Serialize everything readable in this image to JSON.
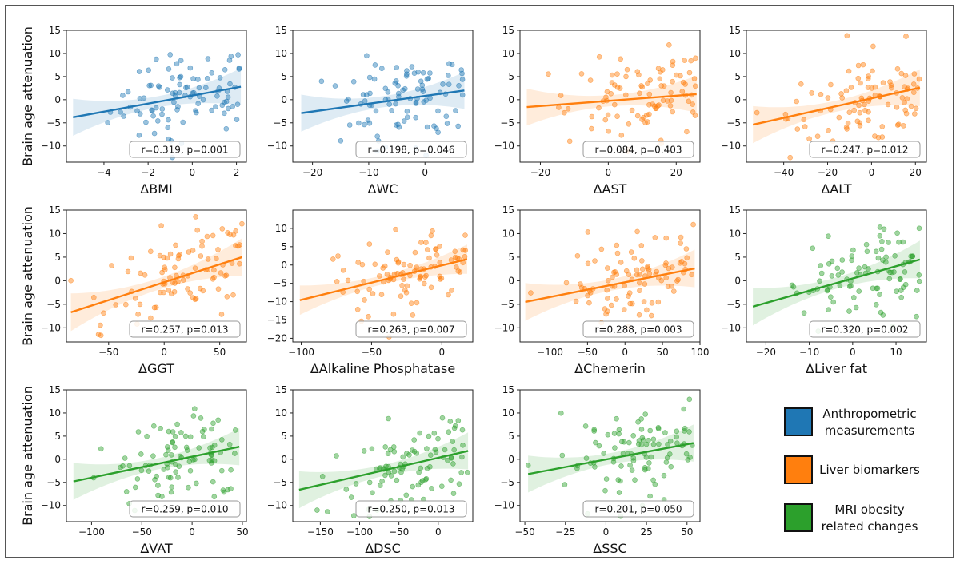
{
  "y_axis_title": "Brain age attenuation",
  "legend": [
    {
      "key": "anthro",
      "lines": [
        "Anthropometric",
        "measurements"
      ],
      "color": "#1f77b4"
    },
    {
      "key": "liver",
      "lines": [
        "Liver biomarkers"
      ],
      "color": "#ff7f0e"
    },
    {
      "key": "mri",
      "lines": [
        "MRI obesity",
        "related changes"
      ],
      "color": "#2ca02c"
    }
  ],
  "chart_data": [
    {
      "type": "scatter",
      "xlabel": "ΔBMI",
      "group": "anthro",
      "xlim": [
        -5.7,
        2.45
      ],
      "ylim": [
        -13.5,
        15
      ],
      "xticks": [
        -4,
        -2,
        0,
        2
      ],
      "xtick_labels": [
        "−4",
        "−2",
        "0",
        "2"
      ],
      "yticks": [
        -10,
        -5,
        0,
        5,
        10,
        15
      ],
      "ytick_labels": [
        "−10",
        "−5",
        "0",
        "5",
        "10",
        "15"
      ],
      "fit": {
        "x": [
          -5.4,
          2.2
        ],
        "y": [
          -3.8,
          2.8
        ]
      },
      "annotation": "r=0.319, p=0.001",
      "xrange": [
        -5.4,
        2.2
      ]
    },
    {
      "type": "scatter",
      "xlabel": "ΔWC",
      "group": "anthro",
      "xlim": [
        -23.5,
        8.5
      ],
      "ylim": [
        -13.5,
        15
      ],
      "xticks": [
        -20,
        -10,
        0
      ],
      "xtick_labels": [
        "−20",
        "−10",
        "0"
      ],
      "yticks": [
        -10,
        -5,
        0,
        5,
        10,
        15
      ],
      "ytick_labels": [
        "−10",
        "−5",
        "0",
        "5",
        "10",
        "15"
      ],
      "fit": {
        "x": [
          -22,
          7
        ],
        "y": [
          -2.9,
          2.0
        ]
      },
      "annotation": "r=0.198, p=0.046",
      "xrange": [
        -22,
        7
      ]
    },
    {
      "type": "scatter",
      "xlabel": "ΔAST",
      "group": "liver",
      "xlim": [
        -26,
        27
      ],
      "ylim": [
        -13.5,
        15
      ],
      "xticks": [
        -20,
        0,
        20
      ],
      "xtick_labels": [
        "−20",
        "0",
        "20"
      ],
      "yticks": [
        -10,
        -5,
        0,
        5,
        10,
        15
      ],
      "ytick_labels": [
        "−10",
        "−5",
        "0",
        "5",
        "10",
        "15"
      ],
      "fit": {
        "x": [
          -24,
          26
        ],
        "y": [
          -1.6,
          1.2
        ]
      },
      "annotation": "r=0.084, p=0.403",
      "xrange": [
        -24,
        26
      ]
    },
    {
      "type": "scatter",
      "xlabel": "ΔALT",
      "group": "liver",
      "xlim": [
        -57,
        25
      ],
      "ylim": [
        -13.5,
        15
      ],
      "xticks": [
        -40,
        -20,
        0,
        20
      ],
      "xtick_labels": [
        "−40",
        "−20",
        "0",
        "20"
      ],
      "yticks": [
        -10,
        -5,
        0,
        5,
        10,
        15
      ],
      "ytick_labels": [
        "−10",
        "−5",
        "0",
        "5",
        "10",
        "15"
      ],
      "fit": {
        "x": [
          -54,
          22
        ],
        "y": [
          -5.4,
          2.6
        ]
      },
      "annotation": "r=0.247, p=0.012",
      "xrange": [
        -54,
        22
      ]
    },
    {
      "type": "scatter",
      "xlabel": "ΔGGT",
      "group": "liver",
      "xlim": [
        -88,
        74
      ],
      "ylim": [
        -13,
        15
      ],
      "xticks": [
        -50,
        0,
        50
      ],
      "xtick_labels": [
        "−50",
        "0",
        "50"
      ],
      "yticks": [
        -10,
        -5,
        0,
        5,
        10,
        15
      ],
      "ytick_labels": [
        "−10",
        "−5",
        "0",
        "5",
        "10",
        "15"
      ],
      "fit": {
        "x": [
          -84,
          70
        ],
        "y": [
          -6.7,
          5.0
        ]
      },
      "annotation": "r=0.257, p=0.013",
      "xrange": [
        -84,
        70
      ]
    },
    {
      "type": "scatter",
      "xlabel": "ΔAlkaline Phosphatase",
      "group": "liver",
      "xlim": [
        -106,
        22
      ],
      "ylim": [
        -21,
        15
      ],
      "xticks": [
        -100,
        -50,
        0
      ],
      "xtick_labels": [
        "−100",
        "−50",
        "0"
      ],
      "yticks": [
        -20,
        -15,
        -10,
        -5,
        0,
        5,
        10
      ],
      "ytick_labels": [
        "−20",
        "−15",
        "−10",
        "−5",
        "0",
        "5",
        "10"
      ],
      "fit": {
        "x": [
          -101,
          18
        ],
        "y": [
          -9.6,
          1.6
        ]
      },
      "annotation": "r=0.263, p=0.007",
      "xrange": [
        -101,
        18
      ]
    },
    {
      "type": "scatter",
      "xlabel": "ΔChemerin",
      "group": "liver",
      "xlim": [
        -140,
        100
      ],
      "ylim": [
        -13,
        15
      ],
      "xticks": [
        -100,
        -50,
        0,
        50,
        100
      ],
      "xtick_labels": [
        "−100",
        "−50",
        "0",
        "50",
        "100"
      ],
      "yticks": [
        -10,
        -5,
        0,
        5,
        10,
        15
      ],
      "ytick_labels": [
        "−10",
        "−5",
        "0",
        "5",
        "10",
        "15"
      ],
      "fit": {
        "x": [
          -133,
          93
        ],
        "y": [
          -4.5,
          2.6
        ]
      },
      "annotation": "r=0.288, p=0.003",
      "xrange": [
        -133,
        93
      ]
    },
    {
      "type": "scatter",
      "xlabel": "ΔLiver fat",
      "group": "mri",
      "xlim": [
        -24.5,
        17
      ],
      "ylim": [
        -13,
        15
      ],
      "xticks": [
        -20,
        -10,
        0,
        10
      ],
      "xtick_labels": [
        "−20",
        "−10",
        "0",
        "10"
      ],
      "yticks": [
        -10,
        -5,
        0,
        5,
        10,
        15
      ],
      "ytick_labels": [
        "−10",
        "−5",
        "0",
        "5",
        "10",
        "15"
      ],
      "fit": {
        "x": [
          -23,
          15.5
        ],
        "y": [
          -5.5,
          4.5
        ]
      },
      "annotation": "r=0.320, p=0.002",
      "xrange": [
        -23,
        15.5
      ]
    },
    {
      "type": "scatter",
      "xlabel": "ΔVAT",
      "group": "mri",
      "xlim": [
        -125,
        54
      ],
      "ylim": [
        -13.5,
        15
      ],
      "xticks": [
        -100,
        -50,
        0,
        50
      ],
      "xtick_labels": [
        "−100",
        "−50",
        "0",
        "50"
      ],
      "yticks": [
        -10,
        -5,
        0,
        5,
        10,
        15
      ],
      "ytick_labels": [
        "−10",
        "−5",
        "0",
        "5",
        "10",
        "15"
      ],
      "fit": {
        "x": [
          -118,
          47
        ],
        "y": [
          -4.8,
          2.7
        ]
      },
      "annotation": "r=0.259, p=0.010",
      "xrange": [
        -118,
        47
      ]
    },
    {
      "type": "scatter",
      "xlabel": "ΔDSC",
      "group": "mri",
      "xlim": [
        -185,
        44
      ],
      "ylim": [
        -13.5,
        15
      ],
      "xticks": [
        -150,
        -100,
        -50,
        0
      ],
      "xtick_labels": [
        "−150",
        "−100",
        "−50",
        "0"
      ],
      "yticks": [
        -10,
        -5,
        0,
        5,
        10,
        15
      ],
      "ytick_labels": [
        "−10",
        "−5",
        "0",
        "5",
        "10",
        "15"
      ],
      "fit": {
        "x": [
          -177,
          38
        ],
        "y": [
          -6.6,
          1.8
        ]
      },
      "annotation": "r=0.250, p=0.013",
      "xrange": [
        -177,
        38
      ]
    },
    {
      "type": "scatter",
      "xlabel": "ΔSSC",
      "group": "mri",
      "xlim": [
        -53,
        58
      ],
      "ylim": [
        -13.5,
        15
      ],
      "xticks": [
        -50,
        -25,
        0,
        25,
        50
      ],
      "xtick_labels": [
        "−50",
        "−25",
        "0",
        "25",
        "50"
      ],
      "yticks": [
        -10,
        -5,
        0,
        5,
        10,
        15
      ],
      "ytick_labels": [
        "−10",
        "−5",
        "0",
        "5",
        "10",
        "15"
      ],
      "fit": {
        "x": [
          -48,
          54
        ],
        "y": [
          -3.2,
          3.5
        ]
      },
      "annotation": "r=0.201, p=0.050",
      "xrange": [
        -48,
        54
      ]
    }
  ]
}
